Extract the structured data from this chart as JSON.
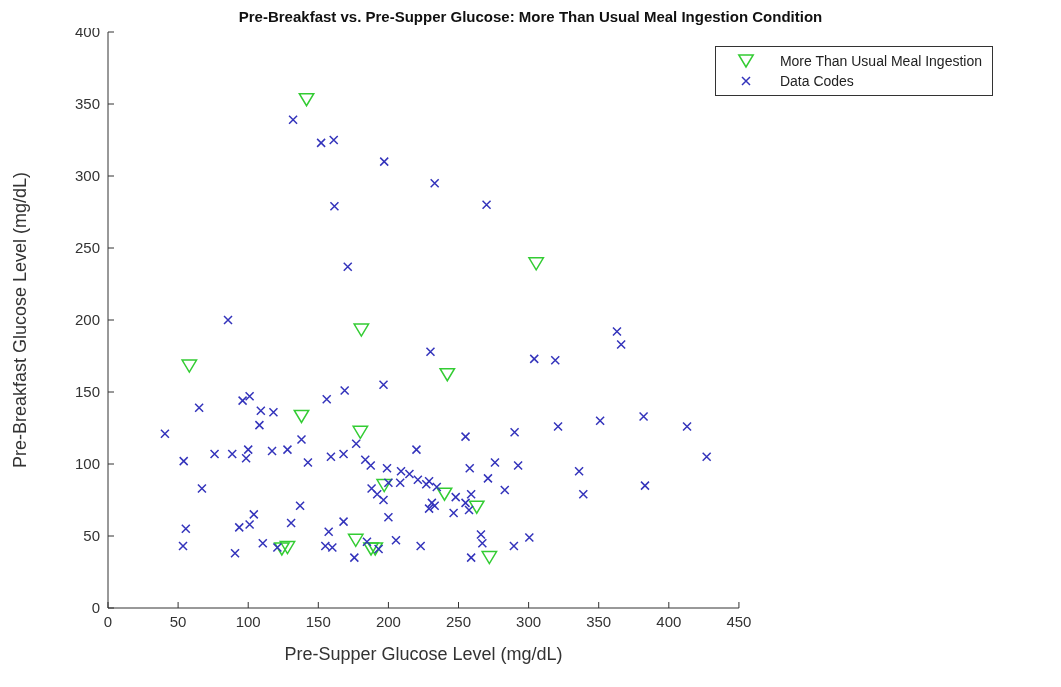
{
  "chart_data": {
    "type": "scatter",
    "title": "Pre-Breakfast vs. Pre-Supper Glucose: More Than Usual Meal Ingestion Condition",
    "xlabel": "Pre-Supper Glucose Level (mg/dL)",
    "ylabel": "Pre-Breakfast Glucose Level (mg/dL)",
    "xlim": [
      0,
      450
    ],
    "ylim": [
      0,
      400
    ],
    "xticks": [
      0,
      50,
      100,
      150,
      200,
      250,
      300,
      350,
      400,
      450
    ],
    "yticks": [
      0,
      50,
      100,
      150,
      200,
      250,
      300,
      350,
      400
    ],
    "legend": "top right",
    "series": [
      {
        "name": "More Than Usual Meal Ingestion",
        "color": "#33cc33",
        "marker": "triangle",
        "x": [
          58,
          141.6,
          180.7,
          180,
          138,
          242,
          305.4,
          240,
          263,
          272,
          124,
          128,
          176.7,
          187.6,
          190.6,
          197
        ],
        "values": [
          168,
          353,
          193,
          122,
          133,
          162,
          239,
          79,
          70,
          35,
          41,
          42,
          47,
          41,
          41,
          85
        ]
      },
      {
        "name": "Data Codes",
        "color": "#3333bb",
        "marker": "cross",
        "x": [
          132,
          152,
          161,
          197,
          161.5,
          171,
          233,
          270,
          363,
          366,
          230,
          304,
          319,
          85.6,
          321,
          351,
          382,
          413,
          427,
          336,
          339,
          383,
          220,
          255,
          290,
          258,
          276,
          292.5,
          271,
          283,
          215,
          221,
          227,
          229,
          234.5,
          248,
          246.5,
          255,
          257.5,
          259,
          231,
          229,
          233,
          223,
          259,
          266,
          267,
          289.5,
          300.5,
          40.6,
          65,
          54,
          67,
          55.5,
          53.5,
          96,
          101,
          109,
          118,
          108,
          76,
          88.6,
          100,
          98.5,
          117,
          128,
          138,
          142.6,
          137,
          130.6,
          104,
          93.6,
          101,
          110.4,
          90.6,
          120.8,
          156,
          168.8,
          196.5,
          177,
          159,
          168,
          183.5,
          187.4,
          199,
          209,
          188,
          192,
          196.5,
          200,
          208.4,
          200,
          168,
          157.4,
          155,
          160,
          175.7,
          184.7,
          193,
          205.4
        ],
        "values": [
          339,
          323,
          325,
          310,
          279,
          237,
          295,
          280,
          192,
          183,
          178,
          173,
          172,
          200,
          126,
          130,
          133,
          126,
          105,
          95,
          79,
          85,
          110,
          119,
          122,
          97,
          101,
          99,
          90,
          82,
          93,
          89,
          86,
          88,
          84,
          77,
          66,
          73,
          68,
          79,
          73,
          69,
          71,
          43,
          35,
          51,
          45,
          43,
          49,
          121,
          139,
          102,
          83,
          55,
          43,
          144,
          147,
          137,
          136,
          127,
          107,
          107,
          110,
          104,
          109,
          110,
          117,
          101,
          71,
          59,
          65,
          56,
          58,
          45,
          38,
          42,
          145,
          151,
          155,
          114,
          105,
          107,
          103,
          99,
          97,
          95,
          83,
          79,
          75,
          87,
          87,
          63,
          60,
          53,
          43,
          42,
          35,
          46,
          41,
          47
        ]
      }
    ]
  }
}
